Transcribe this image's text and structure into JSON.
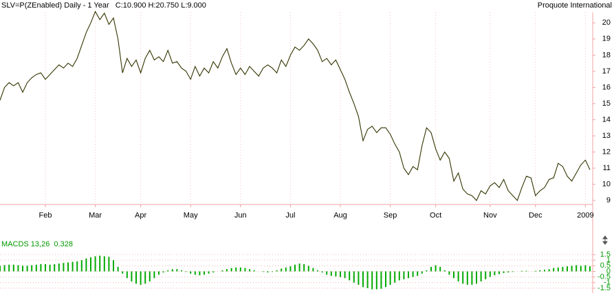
{
  "chart_data": [
    {
      "type": "line",
      "title": "SLV=P(ZEnabled) Daily - 1 Year   C:10.900 H:20.750 L:9.000",
      "source": "Proquote International",
      "color": "#333300",
      "xlim": [
        0,
        130
      ],
      "ylim": [
        8.75,
        20.65
      ],
      "yticks": [
        9,
        10,
        11,
        12,
        13,
        14,
        15,
        16,
        17,
        18,
        19,
        20
      ],
      "xticks": [
        {
          "value": 10,
          "label": "Feb"
        },
        {
          "value": 21,
          "label": "Mar"
        },
        {
          "value": 31,
          "label": "Apr"
        },
        {
          "value": 42,
          "label": "May"
        },
        {
          "value": 53,
          "label": "Jun"
        },
        {
          "value": 64,
          "label": "Jul"
        },
        {
          "value": 75,
          "label": "Aug"
        },
        {
          "value": 86,
          "label": "Sep"
        },
        {
          "value": 96,
          "label": "Oct"
        },
        {
          "value": 108,
          "label": "Nov"
        },
        {
          "value": 118,
          "label": "Dec"
        },
        {
          "value": 129,
          "label": "2009"
        }
      ],
      "grid": true,
      "values": [
        15.2,
        16.0,
        16.3,
        16.1,
        16.3,
        15.7,
        16.3,
        16.6,
        16.8,
        16.9,
        16.5,
        16.8,
        17.1,
        17.4,
        17.2,
        17.5,
        17.3,
        17.8,
        18.6,
        19.4,
        20.0,
        20.7,
        20.2,
        20.6,
        19.9,
        20.3,
        19.0,
        16.9,
        17.8,
        17.3,
        17.7,
        16.9,
        17.8,
        18.3,
        17.7,
        17.9,
        17.6,
        18.3,
        17.5,
        17.6,
        17.2,
        17.0,
        16.5,
        17.3,
        16.7,
        17.2,
        16.9,
        17.6,
        17.2,
        17.9,
        18.4,
        17.5,
        16.8,
        17.2,
        16.8,
        17.3,
        17.0,
        16.7,
        17.2,
        17.4,
        17.2,
        16.9,
        17.7,
        17.3,
        18.0,
        18.5,
        18.3,
        18.6,
        19.0,
        18.7,
        18.3,
        17.6,
        17.8,
        17.4,
        17.7,
        17.1,
        16.5,
        15.7,
        15.0,
        14.2,
        12.7,
        13.4,
        13.6,
        13.2,
        13.5,
        13.5,
        13.1,
        12.5,
        12.0,
        11.0,
        10.6,
        11.1,
        10.9,
        12.4,
        13.5,
        13.2,
        12.2,
        11.5,
        12.0,
        11.6,
        10.2,
        10.7,
        9.7,
        9.4,
        9.3,
        9.0,
        9.6,
        9.4,
        9.9,
        10.1,
        9.8,
        10.3,
        9.6,
        9.3,
        9.0,
        9.8,
        10.5,
        10.4,
        9.3,
        9.6,
        9.8,
        10.3,
        10.4,
        11.3,
        11.1,
        10.5,
        10.2,
        10.7,
        11.2,
        11.5,
        10.9
      ]
    },
    {
      "type": "histogram-bars",
      "title": "MACDS 13,26  0.328",
      "color": "#00aa00",
      "xlim": [
        0,
        130
      ],
      "ylim": [
        -1.93,
        2.05
      ],
      "yticks": [
        1.5,
        1,
        0.5,
        0,
        -0.5,
        -1,
        -1.5
      ],
      "grid": true,
      "values": [
        0.5,
        0.55,
        0.6,
        0.6,
        0.55,
        0.5,
        0.5,
        0.55,
        0.6,
        0.65,
        0.65,
        0.6,
        0.65,
        0.7,
        0.75,
        0.8,
        0.85,
        0.9,
        1.0,
        1.15,
        1.25,
        1.35,
        1.4,
        1.35,
        1.3,
        1.0,
        0.4,
        -0.2,
        -0.6,
        -0.9,
        -1.1,
        -1.2,
        -1.1,
        -0.9,
        -0.6,
        -0.3,
        -0.1,
        0.1,
        0.2,
        0.2,
        0.1,
        -0.05,
        -0.2,
        -0.3,
        -0.35,
        -0.3,
        -0.2,
        -0.1,
        0.0,
        0.1,
        0.2,
        0.3,
        0.35,
        0.35,
        0.3,
        0.2,
        0.1,
        0.0,
        -0.05,
        -0.1,
        -0.05,
        0.1,
        0.25,
        0.35,
        0.45,
        0.6,
        0.7,
        0.65,
        0.5,
        0.3,
        0.1,
        -0.1,
        -0.3,
        -0.4,
        -0.45,
        -0.5,
        -0.6,
        -0.8,
        -1.0,
        -1.2,
        -1.4,
        -1.5,
        -1.6,
        -1.6,
        -1.55,
        -1.4,
        -1.2,
        -1.0,
        -0.8,
        -0.7,
        -0.6,
        -0.5,
        -0.4,
        -0.2,
        0.1,
        0.4,
        0.55,
        0.4,
        0.1,
        -0.3,
        -0.6,
        -0.9,
        -1.1,
        -1.2,
        -1.2,
        -1.1,
        -0.9,
        -0.7,
        -0.5,
        -0.35,
        -0.25,
        -0.15,
        -0.1,
        -0.05,
        0.0,
        0.05,
        0.05,
        0.0,
        0.05,
        0.1,
        0.15,
        0.2,
        0.3,
        0.35,
        0.4,
        0.45,
        0.5,
        0.55,
        0.5,
        0.55,
        0.45
      ]
    }
  ]
}
